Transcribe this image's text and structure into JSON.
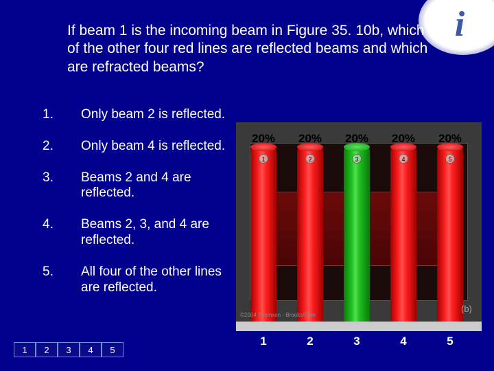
{
  "question": "If beam 1 is the incoming beam in Figure 35. 10b, which of the other four red lines are reflected beams and which are refracted beams?",
  "options": [
    {
      "num": "1.",
      "text": "Only beam 2 is reflected."
    },
    {
      "num": "2.",
      "text": "Only beam 4 is reflected."
    },
    {
      "num": "3.",
      "text": "Beams 2 and 4 are reflected."
    },
    {
      "num": "4.",
      "text": "Beams 2, 3, and 4 are reflected."
    },
    {
      "num": "5.",
      "text": "All four of the other lines are reflected."
    }
  ],
  "chart": {
    "type": "bar",
    "percentages": [
      "20%",
      "20%",
      "20%",
      "20%",
      "20%"
    ],
    "circles": [
      "1",
      "2",
      "3",
      "4",
      "5"
    ],
    "bars": [
      {
        "cls": "bar-red"
      },
      {
        "cls": "bar-red"
      },
      {
        "cls": "bar-green"
      },
      {
        "cls": "bar-red"
      },
      {
        "cls": "bar-red"
      }
    ],
    "x_labels": [
      "1",
      "2",
      "3",
      "4",
      "5"
    ],
    "footer_credit": "©2004 Thomson - Brooks/Cole",
    "b_label": "(b)"
  },
  "nav": [
    "1",
    "2",
    "3",
    "4",
    "5"
  ],
  "logo": "i"
}
